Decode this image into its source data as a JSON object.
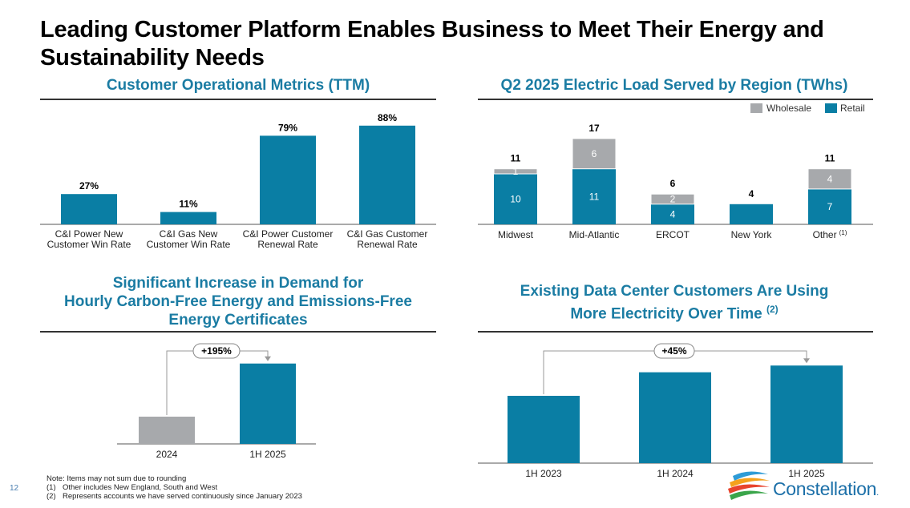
{
  "page": {
    "title": "Leading Customer Platform Enables Business to Meet Their Energy and Sustainability Needs",
    "page_number": "12",
    "footnotes": [
      {
        "num": "",
        "text": "Note: Items may not sum due to rounding"
      },
      {
        "num": "(1)",
        "text": "Other includes New England, South and West"
      },
      {
        "num": "(2)",
        "text": "Represents accounts we have served continuously since January 2023"
      }
    ],
    "logo_text": "Constellation",
    "logo_dot": "."
  },
  "colors": {
    "primary": "#0a7ea4",
    "wholesale": "#a7a9ac",
    "title_blue": "#1b7ca3"
  },
  "chart_data": [
    {
      "id": "metrics",
      "type": "bar",
      "title": "Customer Operational Metrics (TTM)",
      "categories": [
        [
          "C&I Power New",
          "Customer Win Rate"
        ],
        [
          "C&I Gas New",
          "Customer Win Rate"
        ],
        [
          "C&I Power Customer",
          "Renewal Rate"
        ],
        [
          "C&I Gas Customer",
          "Renewal Rate"
        ]
      ],
      "values": [
        27,
        11,
        79,
        88
      ],
      "data_labels": [
        "27%",
        "11%",
        "79%",
        "88%"
      ],
      "unit": "%",
      "ylim": [
        0,
        100
      ],
      "grid": false
    },
    {
      "id": "load",
      "type": "bar",
      "stacked": true,
      "title": "Q2 2025 Electric Load Served by Region (TWhs)",
      "categories": [
        "Midwest",
        "Mid-Atlantic",
        "ERCOT",
        "New York",
        "Other"
      ],
      "category_footnotes": [
        "",
        "",
        "",
        "",
        "(1)"
      ],
      "series": [
        {
          "name": "Retail",
          "values": [
            10,
            11,
            4,
            4,
            7
          ]
        },
        {
          "name": "Wholesale",
          "values": [
            1,
            6,
            2,
            0,
            4
          ]
        }
      ],
      "totals": [
        11,
        17,
        6,
        4,
        11
      ],
      "legend": [
        "Wholesale",
        "Retail"
      ],
      "legend_position": "top-right",
      "ylim": [
        0,
        20
      ],
      "grid": false
    },
    {
      "id": "hourly",
      "type": "bar",
      "title": [
        "Significant Increase in Demand for",
        "Hourly Carbon-Free Energy and Emissions-Free",
        "Energy Certificates"
      ],
      "categories": [
        "2024",
        "1H 2025"
      ],
      "values": [
        1,
        2.95
      ],
      "annotation": "+195%",
      "grid": false
    },
    {
      "id": "datacenter",
      "type": "bar",
      "title": [
        "Existing Data Center Customers Are Using",
        "More Electricity Over Time"
      ],
      "title_footnote": "(2)",
      "categories": [
        "1H 2023",
        "1H 2024",
        "1H 2025"
      ],
      "values": [
        1,
        1.35,
        1.45
      ],
      "annotation": "+45%",
      "grid": false
    }
  ]
}
